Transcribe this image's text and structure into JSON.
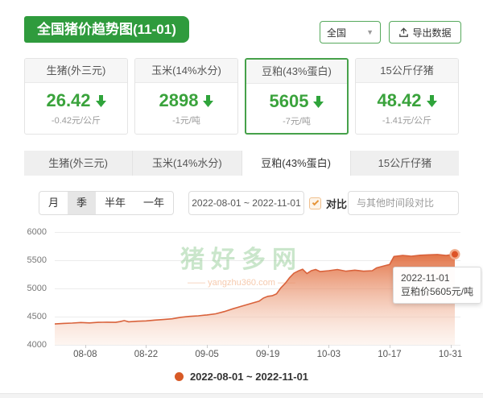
{
  "header": {
    "title": "全国猪价趋势图(11-01)",
    "region_select_value": "全国",
    "export_label": "导出数据"
  },
  "price_cards": [
    {
      "name": "生猪(外三元)",
      "value": "26.42",
      "change": "-0.42元/公斤",
      "direction": "down",
      "selected": false
    },
    {
      "name": "玉米(14%水分)",
      "value": "2898",
      "change": "-1元/吨",
      "direction": "down",
      "selected": false
    },
    {
      "name": "豆粕(43%蛋白)",
      "value": "5605",
      "change": "-7元/吨",
      "direction": "down",
      "selected": true
    },
    {
      "name": "15公斤仔猪",
      "value": "48.42",
      "change": "-1.41元/公斤",
      "direction": "down",
      "selected": false
    }
  ],
  "tabs": [
    {
      "label": "生猪(外三元)",
      "active": false
    },
    {
      "label": "玉米(14%水分)",
      "active": false
    },
    {
      "label": "豆粕(43%蛋白)",
      "active": true
    },
    {
      "label": "15公斤仔猪",
      "active": false
    }
  ],
  "controls": {
    "periods": [
      "月",
      "季",
      "半年",
      "一年"
    ],
    "active_period": "季",
    "date_range": "2022-08-01 ~ 2022-11-01",
    "compare_label": "对比",
    "compare_checked": true,
    "compare_placeholder": "与其他时间段对比"
  },
  "watermark": {
    "text": "猪好多网",
    "site": "yangzhu360.com"
  },
  "chart_data": {
    "type": "area",
    "title": "豆粕(43%蛋白)价格趋势",
    "ylim": [
      4000,
      6000
    ],
    "yticks": [
      6000,
      5500,
      5000,
      4500,
      4000
    ],
    "xticks": [
      "08-08",
      "08-22",
      "09-05",
      "09-19",
      "10-03",
      "10-17",
      "10-31"
    ],
    "grid": true,
    "legend_position": "bottom",
    "legend_label": "2022-08-01 ~ 2022-11-01",
    "legend_color": "#d85a26",
    "line_color": "#d9623b",
    "fill_color_top": "#e06a3a",
    "fill_color_bottom": "#fbe4d7",
    "tooltip": {
      "date": "2022-11-01",
      "text": "豆粕价5605元/吨"
    },
    "series": [
      {
        "name": "2022-08-01 ~ 2022-11-01",
        "x": [
          "2022-08-01",
          "2022-08-03",
          "2022-08-05",
          "2022-08-07",
          "2022-08-09",
          "2022-08-11",
          "2022-08-13",
          "2022-08-15",
          "2022-08-16",
          "2022-08-17",
          "2022-08-18",
          "2022-08-20",
          "2022-08-22",
          "2022-08-24",
          "2022-08-26",
          "2022-08-28",
          "2022-08-30",
          "2022-09-01",
          "2022-09-03",
          "2022-09-05",
          "2022-09-07",
          "2022-09-09",
          "2022-09-11",
          "2022-09-13",
          "2022-09-15",
          "2022-09-17",
          "2022-09-18",
          "2022-09-19",
          "2022-09-20",
          "2022-09-21",
          "2022-09-22",
          "2022-09-23",
          "2022-09-24",
          "2022-09-25",
          "2022-09-26",
          "2022-09-27",
          "2022-09-28",
          "2022-09-29",
          "2022-09-30",
          "2022-10-01",
          "2022-10-03",
          "2022-10-05",
          "2022-10-07",
          "2022-10-09",
          "2022-10-11",
          "2022-10-13",
          "2022-10-14",
          "2022-10-16",
          "2022-10-17",
          "2022-10-18",
          "2022-10-20",
          "2022-10-22",
          "2022-10-24",
          "2022-10-26",
          "2022-10-28",
          "2022-10-30",
          "2022-10-31",
          "2022-11-01"
        ],
        "values": [
          4370,
          4380,
          4385,
          4395,
          4388,
          4398,
          4402,
          4398,
          4412,
          4430,
          4408,
          4418,
          4425,
          4438,
          4448,
          4462,
          4488,
          4505,
          4515,
          4530,
          4550,
          4590,
          4640,
          4685,
          4730,
          4775,
          4830,
          4860,
          4870,
          4905,
          5010,
          5090,
          5190,
          5270,
          5310,
          5340,
          5265,
          5315,
          5335,
          5300,
          5315,
          5335,
          5305,
          5325,
          5305,
          5315,
          5365,
          5405,
          5425,
          5565,
          5585,
          5572,
          5588,
          5596,
          5602,
          5585,
          5596,
          5605
        ]
      }
    ]
  }
}
